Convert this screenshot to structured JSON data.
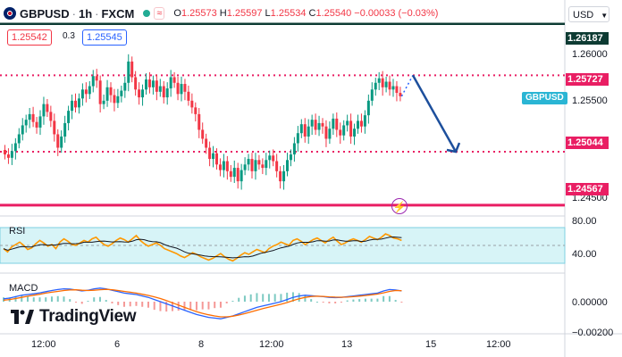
{
  "header": {
    "symbol": "GBPUSD",
    "timeframe": "1h",
    "exchange": "FXCM",
    "sep": "·",
    "wave_label": "≈",
    "ohlc": {
      "o_label": "O",
      "o": "1.25573",
      "h_label": "H",
      "h": "1.25597",
      "l_label": "L",
      "l": "1.25534",
      "c_label": "C",
      "c": "1.25540",
      "change": "−0.00033 (−0.03%)"
    },
    "sell_price": "1.25542",
    "spread": "0.3",
    "buy_price": "1.25545"
  },
  "currency_button": "USD",
  "symbol_tag": "GBPUSD",
  "price_axis": {
    "ticks": [
      "1.26000",
      "1.25500",
      "1.24500"
    ],
    "tags": [
      {
        "label": "1.26187",
        "color": "#0d3b33"
      },
      {
        "label": "1.25727",
        "color": "#e91e63"
      },
      {
        "label": "1.25044",
        "color": "#e91e63"
      },
      {
        "label": "1.24567",
        "color": "#e91e63"
      }
    ]
  },
  "rsi": {
    "label": "RSI",
    "ticks": [
      "80.00",
      "40.00"
    ],
    "values": [
      50,
      46,
      52,
      55,
      58,
      54,
      49,
      51,
      56,
      60,
      57,
      53,
      55,
      50,
      58,
      62,
      59,
      55,
      54,
      57,
      60,
      58,
      62,
      64,
      59,
      55,
      53,
      56,
      60,
      63,
      61,
      58,
      62,
      66,
      60,
      56,
      53,
      55,
      57,
      54,
      50,
      48,
      46,
      44,
      41,
      39,
      42,
      45,
      43,
      40,
      38,
      36,
      38,
      41,
      44,
      40,
      37,
      35,
      38,
      42,
      45,
      43,
      46,
      49,
      47,
      45,
      50,
      53,
      55,
      58,
      56,
      54,
      60,
      62,
      59,
      55,
      58,
      61,
      63,
      60,
      57,
      61,
      64,
      59,
      55,
      57,
      60,
      62,
      60,
      58,
      61,
      65,
      63,
      61,
      64,
      68,
      66,
      63,
      62,
      60
    ]
  },
  "macd": {
    "label": "MACD",
    "ticks": [
      "0.00000",
      "−0.00200"
    ],
    "macd_line": [
      0.2,
      0.25,
      0.35,
      0.45,
      0.5,
      0.55,
      0.62,
      0.7,
      0.78,
      0.85,
      0.9,
      0.88,
      0.82,
      0.75,
      0.8,
      0.9,
      0.95,
      0.9,
      0.8,
      0.7,
      0.6,
      0.55,
      0.5,
      0.4,
      0.3,
      0.15,
      0,
      -0.15,
      -0.3,
      -0.45,
      -0.6,
      -0.75,
      -0.9,
      -1.0,
      -1.1,
      -1.15,
      -1.2,
      -1.1,
      -1.0,
      -0.85,
      -0.7,
      -0.55,
      -0.4,
      -0.3,
      -0.2,
      -0.1,
      0,
      0.15,
      0.3,
      0.4,
      0.45,
      0.42,
      0.38,
      0.35,
      0.3,
      0.28,
      0.3,
      0.35,
      0.4,
      0.45,
      0.5,
      0.55,
      0.6,
      0.75,
      0.85,
      0.82,
      0.75
    ],
    "signal_line": [
      0.1,
      0.15,
      0.22,
      0.3,
      0.38,
      0.45,
      0.52,
      0.6,
      0.66,
      0.72,
      0.78,
      0.82,
      0.83,
      0.8,
      0.78,
      0.8,
      0.84,
      0.86,
      0.84,
      0.78,
      0.72,
      0.66,
      0.6,
      0.52,
      0.44,
      0.34,
      0.22,
      0.08,
      -0.08,
      -0.24,
      -0.4,
      -0.55,
      -0.7,
      -0.82,
      -0.92,
      -1.0,
      -1.06,
      -1.06,
      -1.02,
      -0.94,
      -0.84,
      -0.72,
      -0.6,
      -0.48,
      -0.38,
      -0.28,
      -0.18,
      -0.06,
      0.08,
      0.2,
      0.3,
      0.36,
      0.38,
      0.37,
      0.34,
      0.32,
      0.31,
      0.32,
      0.35,
      0.39,
      0.43,
      0.48,
      0.53,
      0.62,
      0.72,
      0.78,
      0.77
    ]
  },
  "x_axis": [
    {
      "label": "12:00"
    },
    {
      "label": "6"
    },
    {
      "label": "8"
    },
    {
      "label": "12:00"
    },
    {
      "label": "13"
    },
    {
      "label": "15"
    },
    {
      "label": "12:00"
    }
  ],
  "chart_data": {
    "type": "candlestick",
    "symbol": "GBPUSD",
    "timeframe": "1h",
    "closes": [
      1.2502,
      1.2499,
      1.2505,
      1.2512,
      1.252,
      1.2528,
      1.2533,
      1.2538,
      1.2531,
      1.2526,
      1.2536,
      1.2547,
      1.254,
      1.2532,
      1.252,
      1.2508,
      1.2518,
      1.253,
      1.2541,
      1.255,
      1.2544,
      1.2552,
      1.256,
      1.2556,
      1.2563,
      1.2572,
      1.2568,
      1.2547,
      1.255,
      1.2562,
      1.2555,
      1.2548,
      1.2554,
      1.2559,
      1.2566,
      1.2585,
      1.2571,
      1.256,
      1.2553,
      1.256,
      1.2569,
      1.2562,
      1.2568,
      1.2558,
      1.2563,
      1.2553,
      1.2561,
      1.2571,
      1.2566,
      1.2556,
      1.2565,
      1.2558,
      1.255,
      1.2544,
      1.2538,
      1.2524,
      1.2516,
      1.2508,
      1.2498,
      1.2503,
      1.2493,
      1.2488,
      1.2496,
      1.2487,
      1.2482,
      1.249,
      1.2478,
      1.2488,
      1.2493,
      1.2498,
      1.2487,
      1.2497,
      1.2493,
      1.249,
      1.2497,
      1.2501,
      1.2496,
      1.2487,
      1.2478,
      1.2487,
      1.2497,
      1.2502,
      1.2512,
      1.2521,
      1.2529,
      1.2518,
      1.2527,
      1.2533,
      1.2524,
      1.253,
      1.2527,
      1.2516,
      1.2525,
      1.2534,
      1.2524,
      1.2519,
      1.2528,
      1.2532,
      1.2518,
      1.2525,
      1.2532,
      1.2527,
      1.2537,
      1.255,
      1.256,
      1.2566,
      1.257,
      1.2562,
      1.2567,
      1.256,
      1.2563,
      1.2557,
      1.2554
    ],
    "opens": [
      1.2506,
      1.2502,
      1.2499,
      1.2505,
      1.2512,
      1.252,
      1.2528,
      1.2533,
      1.2538,
      1.2531,
      1.2526,
      1.2536,
      1.2547,
      1.254,
      1.2532,
      1.252,
      1.2508,
      1.2518,
      1.253,
      1.2541,
      1.255,
      1.2544,
      1.2552,
      1.256,
      1.2556,
      1.2563,
      1.2572,
      1.2568,
      1.2547,
      1.255,
      1.2562,
      1.2555,
      1.2548,
      1.2554,
      1.2559,
      1.2566,
      1.2585,
      1.2571,
      1.256,
      1.2553,
      1.256,
      1.2569,
      1.2562,
      1.2568,
      1.2558,
      1.2563,
      1.2553,
      1.2561,
      1.2571,
      1.2566,
      1.2556,
      1.2565,
      1.2558,
      1.255,
      1.2544,
      1.2538,
      1.2524,
      1.2516,
      1.2508,
      1.2498,
      1.2503,
      1.2493,
      1.2488,
      1.2496,
      1.2487,
      1.2482,
      1.249,
      1.2478,
      1.2488,
      1.2493,
      1.2498,
      1.2487,
      1.2497,
      1.2493,
      1.249,
      1.2497,
      1.2501,
      1.2496,
      1.2487,
      1.2478,
      1.2487,
      1.2497,
      1.2502,
      1.2512,
      1.2521,
      1.2529,
      1.2518,
      1.2527,
      1.2533,
      1.2524,
      1.253,
      1.2527,
      1.2516,
      1.2525,
      1.2534,
      1.2524,
      1.2519,
      1.2528,
      1.2532,
      1.2518,
      1.2525,
      1.2532,
      1.2527,
      1.2537,
      1.255,
      1.256,
      1.2566,
      1.257,
      1.2562,
      1.2567,
      1.256,
      1.2563,
      1.2557
    ],
    "levels": [
      1.26187,
      1.25727,
      1.25044,
      1.24567
    ],
    "y_range": [
      1.2447,
      1.264
    ],
    "forecast_arrow": {
      "from": 1.25727,
      "to": 1.25044
    }
  },
  "branding": {
    "name": "TradingView"
  },
  "colors": {
    "up": "#089981",
    "down": "#f23645",
    "rsi": "#ff9800",
    "rsi_ma": "#131722",
    "macd": "#2962ff",
    "signal": "#ff6d00"
  }
}
